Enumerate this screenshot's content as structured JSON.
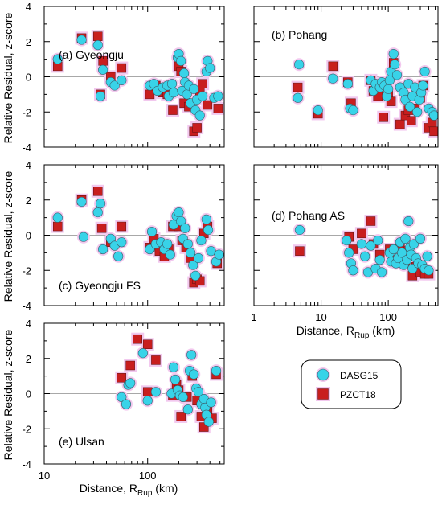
{
  "chart_data": {
    "type": "scatter",
    "panel_label_placement": [
      "bottom-left",
      "top-left",
      "bottom-left",
      "top-left",
      "bottom-left"
    ],
    "grid": false,
    "legend_placement": "right-of-panel-e",
    "ylabel": "Relative Residual, z-score",
    "xlabel_prefix": "Distance, R",
    "xlabel_sub": "Rup",
    "xlabel_suffix": " (km)",
    "yticks": [
      "4",
      "2",
      "0",
      "-2",
      "-4"
    ],
    "xticks_left": [
      "10",
      "100"
    ],
    "xticks_right": [
      "1",
      "10",
      "100"
    ],
    "colors": {
      "DASG15": "#38d3e8",
      "PZCT18": "#c81e1e",
      "halo": "#f2c8ee",
      "zero_line": "#a8a8a8"
    },
    "legend": [
      {
        "name": "DASG15",
        "marker": "circle"
      },
      {
        "name": "PZCT18",
        "marker": "square"
      }
    ],
    "panels": [
      {
        "label": "(a) Gyeongju",
        "xlim": [
          10,
          550
        ],
        "ylim": [
          -4,
          4
        ],
        "xscale": "log",
        "series": [
          {
            "name": "DASG15",
            "x": [
              13.5,
              23,
              33,
              35,
              37,
              44,
              48,
              56,
              105,
              115,
              125,
              140,
              155,
              160,
              172,
              178,
              195,
              200,
              210,
              215,
              225,
              230,
              240,
              250,
              260,
              280,
              290,
              300,
              320,
              340,
              370,
              380,
              400,
              440,
              480
            ],
            "y": [
              1.0,
              2.1,
              1.8,
              -1.1,
              0.4,
              -0.3,
              -0.5,
              -0.2,
              -0.5,
              -0.4,
              -0.8,
              -0.6,
              -0.5,
              -1.1,
              -0.4,
              -0.9,
              1.1,
              1.3,
              0.9,
              -0.8,
              0.2,
              -0.3,
              -1.0,
              -0.5,
              -1.5,
              -0.7,
              -1.9,
              -1.3,
              -2.2,
              -1.1,
              0.3,
              0.9,
              0.5,
              -1.2,
              -1.1
            ]
          },
          {
            "name": "PZCT18",
            "x": [
              13.5,
              23,
              33,
              35,
              37,
              44,
              56,
              105,
              120,
              140,
              155,
              175,
              200,
              210,
              225,
              250,
              280,
              300,
              320,
              340,
              380,
              480
            ],
            "y": [
              0.6,
              2.2,
              2.3,
              -1.0,
              0.9,
              0.0,
              0.5,
              -1.0,
              -0.5,
              -0.9,
              -1.0,
              -1.9,
              0.6,
              0.3,
              -1.5,
              -1.7,
              -3.1,
              -2.9,
              -0.8,
              -0.4,
              -1.6,
              -1.8
            ]
          }
        ]
      },
      {
        "label": "(b) Pohang",
        "xlim": [
          1,
          550
        ],
        "ylim": [
          -4,
          4
        ],
        "xscale": "log",
        "series": [
          {
            "name": "DASG15",
            "x": [
              4.7,
              4.5,
              9,
              15,
              25,
              27,
              30,
              55,
              60,
              65,
              75,
              80,
              88,
              95,
              100,
              105,
              110,
              120,
              125,
              135,
              150,
              170,
              180,
              200,
              210,
              230,
              250,
              270,
              290,
              310,
              330,
              350,
              400,
              450,
              480
            ],
            "y": [
              0.7,
              -1.2,
              -1.9,
              -0.1,
              -0.4,
              -1.8,
              -1.9,
              -0.2,
              -0.8,
              -0.4,
              -0.6,
              -0.3,
              -0.5,
              -1.1,
              -0.7,
              -0.2,
              0.3,
              1.3,
              0.7,
              0.1,
              -0.6,
              -0.9,
              -1.3,
              -0.4,
              -1.7,
              -1.1,
              -0.6,
              -2.0,
              -1.3,
              -0.9,
              -0.5,
              0.3,
              -1.8,
              -2.0,
              -2.2
            ]
          },
          {
            "name": "PZCT18",
            "x": [
              4.5,
              9,
              15,
              25,
              28,
              55,
              60,
              70,
              85,
              100,
              110,
              120,
              150,
              180,
              200,
              220,
              250,
              300,
              330,
              400,
              450,
              480
            ],
            "y": [
              -0.6,
              -2.1,
              0.6,
              -0.3,
              -1.5,
              -0.2,
              -0.8,
              -1.1,
              -2.3,
              -1.0,
              -1.4,
              0.8,
              -2.7,
              -2.2,
              -1.9,
              -2.5,
              -1.8,
              -1.2,
              -0.5,
              -2.9,
              -2.6,
              -3.1
            ]
          }
        ]
      },
      {
        "label": "(c) Gyeongju FS",
        "xlim": [
          10,
          550
        ],
        "ylim": [
          -4,
          4
        ],
        "xscale": "log",
        "series": [
          {
            "name": "DASG15",
            "x": [
              13.5,
              23,
              24,
              33,
              35,
              37,
              44,
              48,
              52,
              56,
              105,
              110,
              120,
              135,
              145,
              155,
              165,
              178,
              190,
              200,
              210,
              220,
              230,
              245,
              260,
              275,
              290,
              310,
              330,
              370,
              385,
              410,
              460,
              490
            ],
            "y": [
              1.0,
              1.9,
              -0.1,
              1.3,
              1.8,
              -0.8,
              -0.2,
              -0.6,
              -1.2,
              -0.4,
              -0.8,
              0.2,
              -0.5,
              -0.4,
              -0.8,
              -0.5,
              -1.1,
              0.6,
              1.1,
              1.3,
              0.8,
              -0.2,
              0.4,
              -0.5,
              -1.0,
              -1.7,
              -2.3,
              -1.3,
              -0.3,
              0.9,
              0.3,
              -0.9,
              -1.5,
              -1.1
            ]
          },
          {
            "name": "PZCT18",
            "x": [
              13.5,
              23,
              33,
              36,
              44,
              56,
              105,
              115,
              130,
              145,
              160,
              175,
              200,
              215,
              235,
              260,
              280,
              300,
              320,
              350,
              380,
              470
            ],
            "y": [
              0.5,
              2.0,
              2.5,
              0.4,
              -0.4,
              0.5,
              -0.7,
              -0.2,
              -0.9,
              -1.2,
              -0.8,
              0.5,
              0.5,
              -0.3,
              -0.7,
              -1.3,
              -2.7,
              -2.5,
              -2.6,
              0.1,
              0.5,
              -1.6
            ]
          }
        ]
      },
      {
        "label": "(d) Pohang AS",
        "xlim": [
          1,
          550
        ],
        "ylim": [
          -4,
          4
        ],
        "xscale": "log",
        "series": [
          {
            "name": "DASG15",
            "x": [
              4.8,
              24,
              26,
              28,
              30,
              40,
              45,
              50,
              55,
              65,
              70,
              75,
              80,
              105,
              110,
              120,
              130,
              140,
              150,
              160,
              170,
              180,
              190,
              200,
              210,
              220,
              230,
              240,
              260,
              280,
              300,
              320,
              350,
              380,
              400
            ],
            "y": [
              0.3,
              -0.3,
              -1.0,
              -1.6,
              -2.0,
              -0.5,
              -1.2,
              -2.1,
              -0.6,
              -1.9,
              -0.3,
              -1.4,
              -2.1,
              -1.0,
              -1.5,
              -0.8,
              -1.6,
              -1.3,
              -0.4,
              -1.0,
              -1.7,
              -0.2,
              -1.4,
              0.8,
              -0.7,
              -1.1,
              -1.9,
              -0.5,
              -1.3,
              -1.6,
              -0.2,
              -1.7,
              -1.9,
              -1.2,
              -2.0
            ]
          },
          {
            "name": "PZCT18",
            "x": [
              4.8,
              26,
              30,
              40,
              55,
              60,
              75,
              105,
              130,
              150,
              180,
              200,
              230,
              260,
              300,
              350,
              400
            ],
            "y": [
              -0.9,
              -0.1,
              -0.8,
              0.1,
              0.8,
              -0.5,
              -1.1,
              -0.8,
              -1.4,
              -0.6,
              -1.6,
              -0.9,
              -2.3,
              -1.8,
              -2.1,
              -2.2,
              -2.2
            ]
          }
        ]
      },
      {
        "label": "(e) Ulsan",
        "xlim": [
          10,
          550
        ],
        "ylim": [
          -4,
          4
        ],
        "xscale": "log",
        "series": [
          {
            "name": "DASG15",
            "x": [
              56,
              62,
              65,
              68,
              90,
              100,
              120,
              170,
              178,
              185,
              195,
              205,
              220,
              245,
              255,
              265,
              280,
              295,
              310,
              330,
              350,
              360,
              370,
              390,
              410,
              460
            ],
            "y": [
              -0.2,
              -0.6,
              0.5,
              0.6,
              2.3,
              -0.4,
              0.1,
              0.0,
              1.5,
              0.8,
              0.2,
              -0.1,
              -0.2,
              -0.9,
              1.3,
              2.2,
              1.1,
              0.3,
              0.1,
              -0.6,
              -0.3,
              -0.8,
              -1.2,
              -1.6,
              -0.5,
              1.3
            ]
          },
          {
            "name": "PZCT18",
            "x": [
              56,
              68,
              80,
              100,
              100,
              120,
              175,
              190,
              200,
              210,
              240,
              270,
              300,
              330,
              350,
              380,
              420,
              460
            ],
            "y": [
              0.9,
              1.6,
              3.1,
              2.8,
              0.1,
              1.9,
              -0.1,
              0.5,
              0.2,
              -1.3,
              -0.2,
              1.0,
              -0.4,
              -1.3,
              -1.9,
              -0.9,
              -1.4,
              1.1
            ]
          }
        ]
      }
    ]
  }
}
